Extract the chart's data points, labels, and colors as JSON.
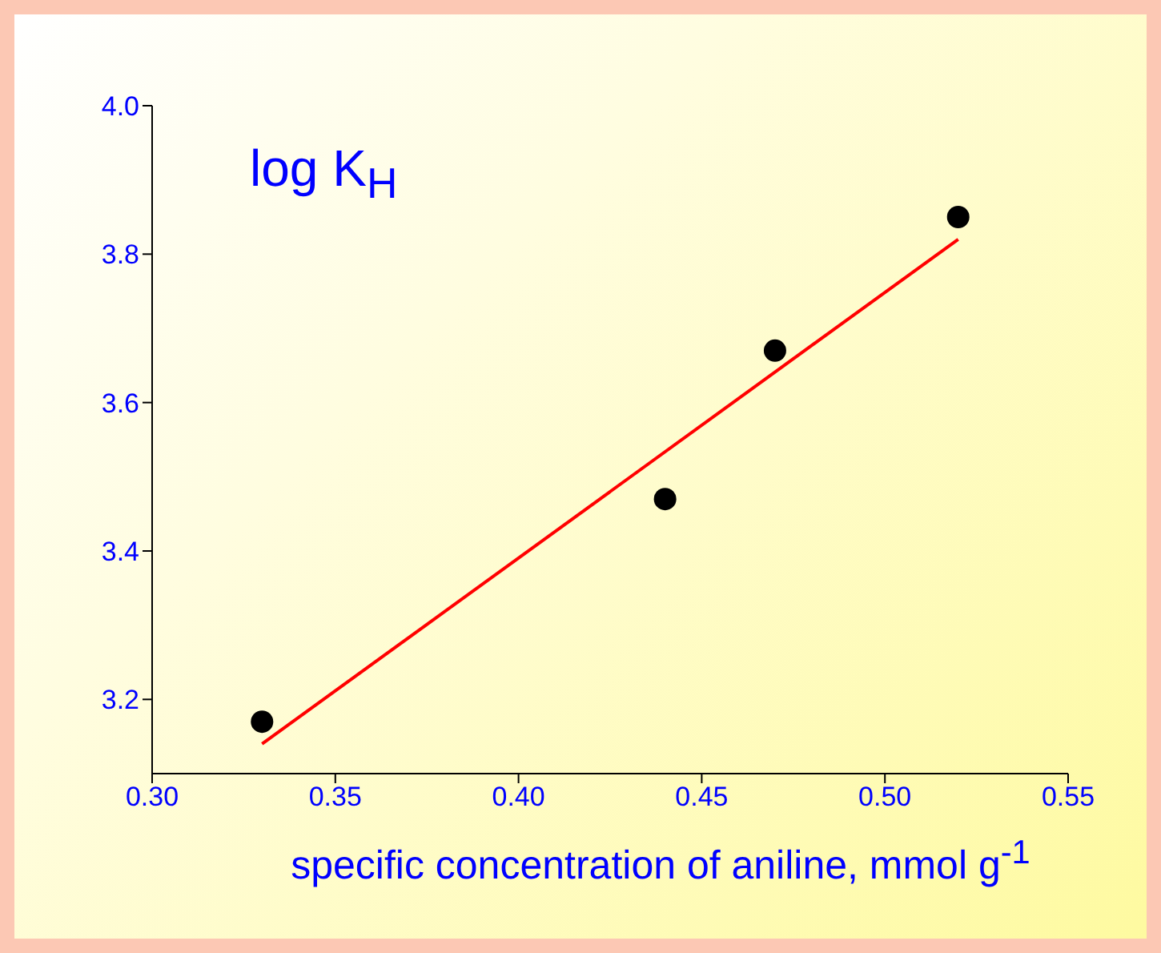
{
  "chart_data": {
    "type": "scatter",
    "xlabel": "specific concentration of aniline, mmol g$^{-1}$",
    "annotations": [
      "log K$_{H}$"
    ],
    "xlim": [
      0.3,
      0.55
    ],
    "xticks": [
      {
        "value": 0.3,
        "label": "0.30"
      },
      {
        "value": 0.35,
        "label": "0.35"
      },
      {
        "value": 0.4,
        "label": "0.40"
      },
      {
        "value": 0.45,
        "label": "0.45"
      },
      {
        "value": 0.5,
        "label": "0.50"
      },
      {
        "value": 0.55,
        "label": "0.55"
      }
    ],
    "ylim": [
      3.1,
      4.0
    ],
    "yticks": [
      3.2,
      3.4,
      3.6,
      3.8,
      {
        "value": 4.0,
        "label": "4.0"
      }
    ],
    "grid": false,
    "legend": false,
    "series": [
      {
        "marker": "circle",
        "color": "#000000",
        "x": [
          0.33,
          0.44,
          0.47,
          0.52
        ],
        "values": [
          3.17,
          3.47,
          3.67,
          3.85
        ]
      },
      {
        "type": "line",
        "color": "#ff0000",
        "x": [
          0.33,
          0.52
        ],
        "values": [
          3.14,
          3.82
        ]
      }
    ]
  }
}
